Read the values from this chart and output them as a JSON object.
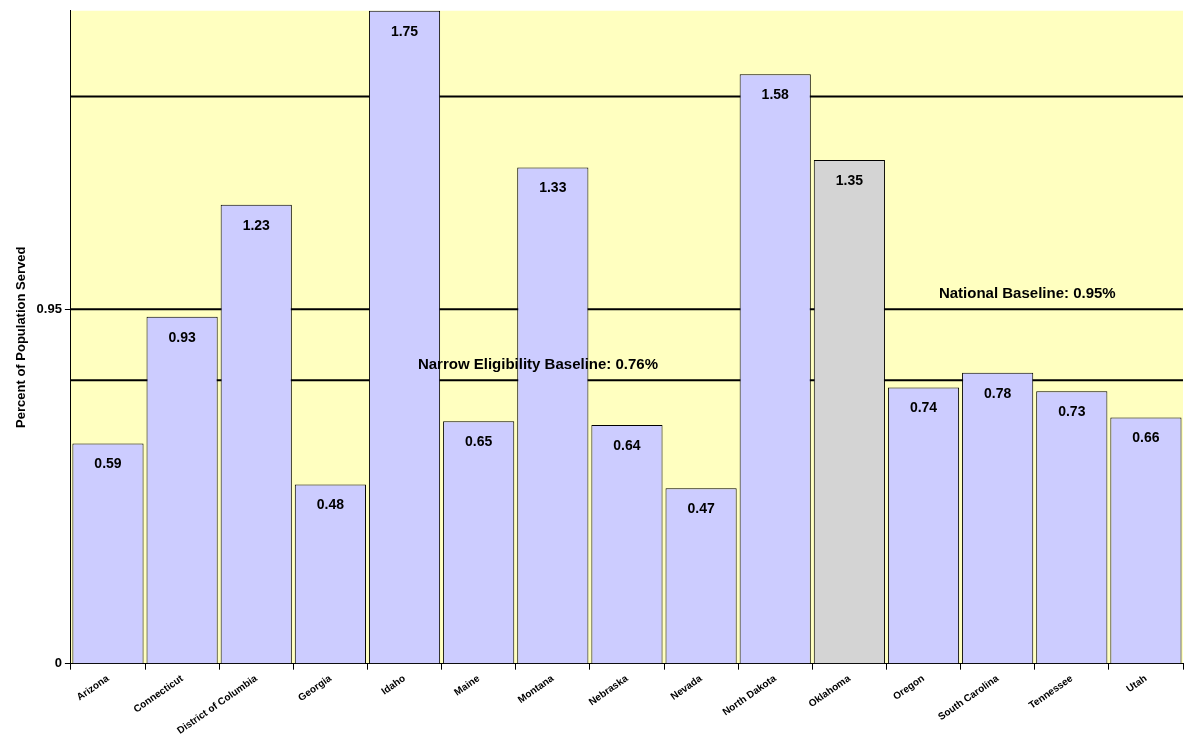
{
  "chart_data": {
    "type": "bar",
    "ylabel": "Percent of Population Served",
    "categories": [
      "Arizona",
      "Connecticut",
      "District of Columbia",
      "Georgia",
      "Idaho",
      "Maine",
      "Montana",
      "Nebraska",
      "Nevada",
      "North Dakota",
      "Oklahoma",
      "Oregon",
      "South Carolina",
      "Tennessee",
      "Utah"
    ],
    "values": [
      0.59,
      0.93,
      1.23,
      0.48,
      1.75,
      0.65,
      1.33,
      0.64,
      0.47,
      1.58,
      1.35,
      0.74,
      0.78,
      0.73,
      0.66
    ],
    "colors": [
      "#ccccff",
      "#ccccff",
      "#ccccff",
      "#ccccff",
      "#ccccff",
      "#ccccff",
      "#ccccff",
      "#ccccff",
      "#ccccff",
      "#ccccff",
      "#d4d4d4",
      "#ccccff",
      "#ccccff",
      "#ccccff",
      "#ccccff"
    ],
    "ylim": [
      0,
      1.75
    ],
    "yticks": [
      0,
      0.95
    ],
    "ref_lines": [
      {
        "axis": "y",
        "value": 0.76,
        "label": "Narrow Eligibility Baseline: 0.76%"
      },
      {
        "axis": "y",
        "value": 0.95,
        "label": "National Baseline: 0.95%"
      },
      {
        "axis": "y",
        "value": 1.52,
        "label": null
      }
    ],
    "data_labels": true,
    "grid": false,
    "legend": false
  }
}
